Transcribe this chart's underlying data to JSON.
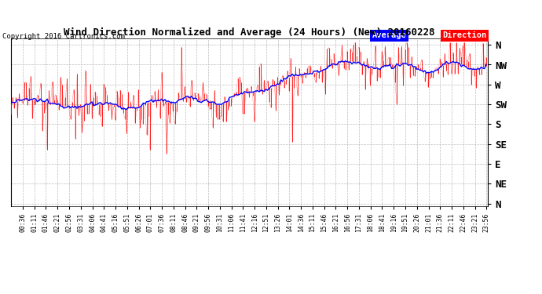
{
  "title": "Wind Direction Normalized and Average (24 Hours) (New) 20160228",
  "copyright": "Copyright 2016 Cartronics.com",
  "background_color": "#ffffff",
  "plot_bg_color": "#ffffff",
  "grid_color": "#bbbbbb",
  "ytick_labels": [
    "N",
    "NW",
    "W",
    "SW",
    "S",
    "SE",
    "E",
    "NE",
    "N"
  ],
  "ytick_values": [
    360,
    315,
    270,
    225,
    180,
    135,
    90,
    45,
    0
  ],
  "ylim": [
    -5,
    375
  ],
  "legend_avg_color": "#0000ff",
  "legend_dir_color": "#ff0000",
  "legend_avg_label": "Average",
  "legend_dir_label": "Direction",
  "num_points": 288,
  "minutes_per_point": 5,
  "tick_interval_minutes": 35,
  "first_tick_minute": 36
}
